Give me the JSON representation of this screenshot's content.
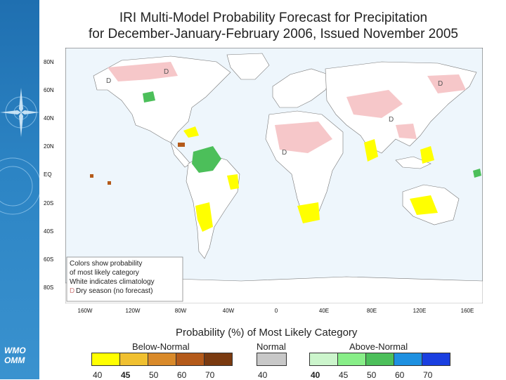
{
  "header": {
    "title_line1": "IRI Multi-Model Probability Forecast for Precipitation",
    "title_line2": "for December-January-February 2006, Issued November 2005"
  },
  "sidebar": {
    "logo_line1": "WMO",
    "logo_line2": "OMM"
  },
  "map": {
    "lat_labels": [
      "80N",
      "60N",
      "40N",
      "20N",
      "EQ",
      "20S",
      "40S",
      "60S",
      "80S"
    ],
    "lon_labels": [
      "160W",
      "120W",
      "80W",
      "40W",
      "0",
      "40E",
      "80E",
      "120E",
      "160E"
    ],
    "dry_marker": "D",
    "note": {
      "line1": "Colors show probability",
      "line2": "of most likely category",
      "line3": "White indicates climatology",
      "line4": "Dry season (no forecast)"
    }
  },
  "legend": {
    "title": "Probability (%) of Most Likely Category",
    "categories": {
      "below": "Below-Normal",
      "normal": "Normal",
      "above": "Above-Normal"
    },
    "below_colors": [
      "#ffff00",
      "#f0c030",
      "#d98a2a",
      "#b45a1a",
      "#7a3a10"
    ],
    "normal_color": "#c8c8c8",
    "above_colors": [
      "#ccf5cc",
      "#88ee88",
      "#4cbf5a",
      "#1e90e0",
      "#1a3fe0"
    ],
    "below_ticks": [
      "40",
      "45",
      "50",
      "60",
      "70"
    ],
    "normal_tick": "40",
    "above_ticks": [
      "40",
      "45",
      "50",
      "60",
      "70"
    ]
  },
  "colors": {
    "ocean": "#eef6fc",
    "dry": "#f6c7c9",
    "land": "#ffffff"
  }
}
